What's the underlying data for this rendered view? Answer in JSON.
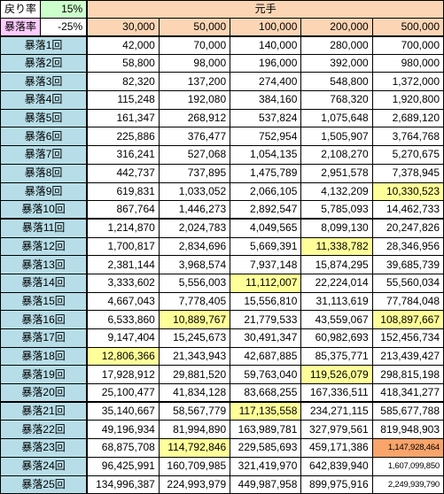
{
  "header": {
    "modori_label": "戻り率",
    "modori_value": "15%",
    "boraku_label": "暴落率",
    "boraku_value": "-25%",
    "motode_label": "元手",
    "columns": [
      "30,000",
      "50,000",
      "100,000",
      "200,000",
      "500,000"
    ]
  },
  "rows": [
    {
      "label": "暴落1回",
      "values": [
        "42,000",
        "70,000",
        "140,000",
        "280,000",
        "700,000"
      ]
    },
    {
      "label": "暴落2回",
      "values": [
        "58,800",
        "98,000",
        "196,000",
        "392,000",
        "980,000"
      ]
    },
    {
      "label": "暴落3回",
      "values": [
        "82,320",
        "137,200",
        "274,400",
        "548,800",
        "1,372,000"
      ]
    },
    {
      "label": "暴落4回",
      "values": [
        "115,248",
        "192,080",
        "384,160",
        "768,320",
        "1,920,800"
      ]
    },
    {
      "label": "暴落5回",
      "values": [
        "161,347",
        "268,912",
        "537,824",
        "1,075,648",
        "2,689,120"
      ]
    },
    {
      "label": "暴落6回",
      "values": [
        "225,886",
        "376,477",
        "752,954",
        "1,505,907",
        "3,764,768"
      ]
    },
    {
      "label": "暴落7回",
      "values": [
        "316,241",
        "527,068",
        "1,054,135",
        "2,108,270",
        "5,270,675"
      ]
    },
    {
      "label": "暴落8回",
      "values": [
        "442,737",
        "737,895",
        "1,475,789",
        "2,951,578",
        "7,378,945"
      ]
    },
    {
      "label": "暴落9回",
      "values": [
        "619,831",
        "1,033,052",
        "2,066,105",
        "4,132,209",
        "10,330,523"
      ]
    },
    {
      "label": "暴落10回",
      "values": [
        "867,764",
        "1,446,273",
        "2,892,547",
        "5,785,093",
        "14,462,733"
      ]
    },
    {
      "label": "暴落11回",
      "values": [
        "1,214,870",
        "2,024,783",
        "4,049,565",
        "8,099,130",
        "20,247,826"
      ]
    },
    {
      "label": "暴落12回",
      "values": [
        "1,700,817",
        "2,834,696",
        "5,669,391",
        "11,338,782",
        "28,346,956"
      ]
    },
    {
      "label": "暴落13回",
      "values": [
        "2,381,144",
        "3,968,574",
        "7,937,148",
        "15,874,295",
        "39,685,739"
      ]
    },
    {
      "label": "暴落14回",
      "values": [
        "3,333,602",
        "5,556,003",
        "11,112,007",
        "22,224,014",
        "55,560,034"
      ]
    },
    {
      "label": "暴落15回",
      "values": [
        "4,667,043",
        "7,778,405",
        "15,556,810",
        "31,113,619",
        "77,784,048"
      ]
    },
    {
      "label": "暴落16回",
      "values": [
        "6,533,860",
        "10,889,767",
        "21,779,533",
        "43,559,067",
        "108,897,667"
      ]
    },
    {
      "label": "暴落17回",
      "values": [
        "9,147,404",
        "15,245,673",
        "30,491,347",
        "60,982,693",
        "152,456,734"
      ]
    },
    {
      "label": "暴落18回",
      "values": [
        "12,806,366",
        "21,343,943",
        "42,687,885",
        "85,375,771",
        "213,439,427"
      ]
    },
    {
      "label": "暴落19回",
      "values": [
        "17,928,912",
        "29,881,520",
        "59,763,040",
        "119,526,079",
        "298,815,198"
      ]
    },
    {
      "label": "暴落20回",
      "values": [
        "25,100,477",
        "41,834,128",
        "83,668,255",
        "167,336,511",
        "418,341,277"
      ]
    },
    {
      "label": "暴落21回",
      "values": [
        "35,140,667",
        "58,567,779",
        "117,135,558",
        "234,271,115",
        "585,677,788"
      ]
    },
    {
      "label": "暴落22回",
      "values": [
        "49,196,934",
        "81,994,890",
        "163,989,781",
        "327,979,561",
        "819,948,903"
      ]
    },
    {
      "label": "暴落23回",
      "values": [
        "68,875,708",
        "114,792,846",
        "229,585,693",
        "459,171,386",
        "1,147,928,464"
      ]
    },
    {
      "label": "暴落24回",
      "values": [
        "96,425,991",
        "160,709,985",
        "321,419,970",
        "642,839,940",
        "1,607,099,850"
      ]
    },
    {
      "label": "暴落25回",
      "values": [
        "134,996,387",
        "224,993,979",
        "449,987,958",
        "899,975,916",
        "2,249,939,790"
      ]
    }
  ],
  "colors": {
    "label_bg": "#b7dee8",
    "header_bg": "#fcd5b4",
    "highlight_yellow": "#ffff99",
    "highlight_orange": "#f8a46a",
    "modori_value_bg": "#ccffcc",
    "boraku_label_bg": "#ffccff"
  }
}
